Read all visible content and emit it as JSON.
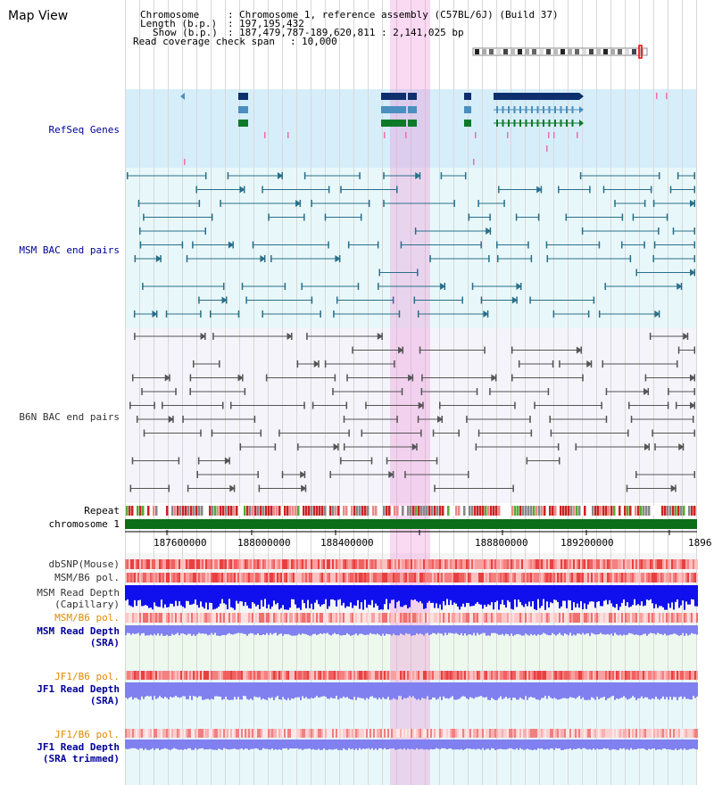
{
  "view_title": "Map View",
  "info": {
    "chromosome_label": "Chromosome",
    "chromosome_value": "Chromosome 1, reference assembly (C57BL/6J) (Build 37)",
    "length_label": "Length (b.p.)",
    "length_value": "197,195,432",
    "show_label": "Show (b.p.)",
    "show_value": "187,479,787-189,620,811 : 2,141,025 bp",
    "coverage_label": "Read coverage check span",
    "coverage_value": "10,000"
  },
  "tracks": {
    "refseq": "RefSeq Genes",
    "msm_bac": "MSM BAC end pairs",
    "b6n_bac": "B6N BAC end pairs",
    "repeat": "Repeat",
    "chromosome": "chromosome 1",
    "dbsnp": "dbSNP(Mouse)",
    "msm_b6_pol": "MSM/B6 pol.",
    "msm_read_depth_cap": "MSM Read Depth\n(Capillary)",
    "msm_b6_pol_2": "MSM/B6 pol.",
    "msm_read_depth_sra": "MSM Read Depth\n(SRA)",
    "jf1_b6_pol": "JF1/B6 pol.",
    "jf1_read_depth_sra": "JF1 Read Depth\n(SRA)",
    "jf1_b6_pol_2": "JF1/B6 pol.",
    "jf1_read_depth_trim": "JF1 Read Depth\n(SRA trimmed)"
  },
  "axis": {
    "ticks": [
      "187600000",
      "188000000",
      "188400000",
      "188800000",
      "189200000",
      "1896"
    ]
  },
  "colors": {
    "refseq_bg": "#d6eefa",
    "msm_bg": "#e8f8fa",
    "b6n_bg": "#f4f4fa",
    "highlight": "#f5c8ee",
    "gene_dark": "#0e2f6e",
    "gene_mid": "#4a8fbf",
    "gene_green": "#0d7a2a",
    "bac_msm": "#2a6f8a",
    "bac_b6n": "#555555",
    "label_navy": "#000099",
    "label_orange": "#e08a00",
    "depth_blue": "#1010ee",
    "depth_lavender": "#8080f0",
    "chromosome_green": "#0d6e1a"
  }
}
